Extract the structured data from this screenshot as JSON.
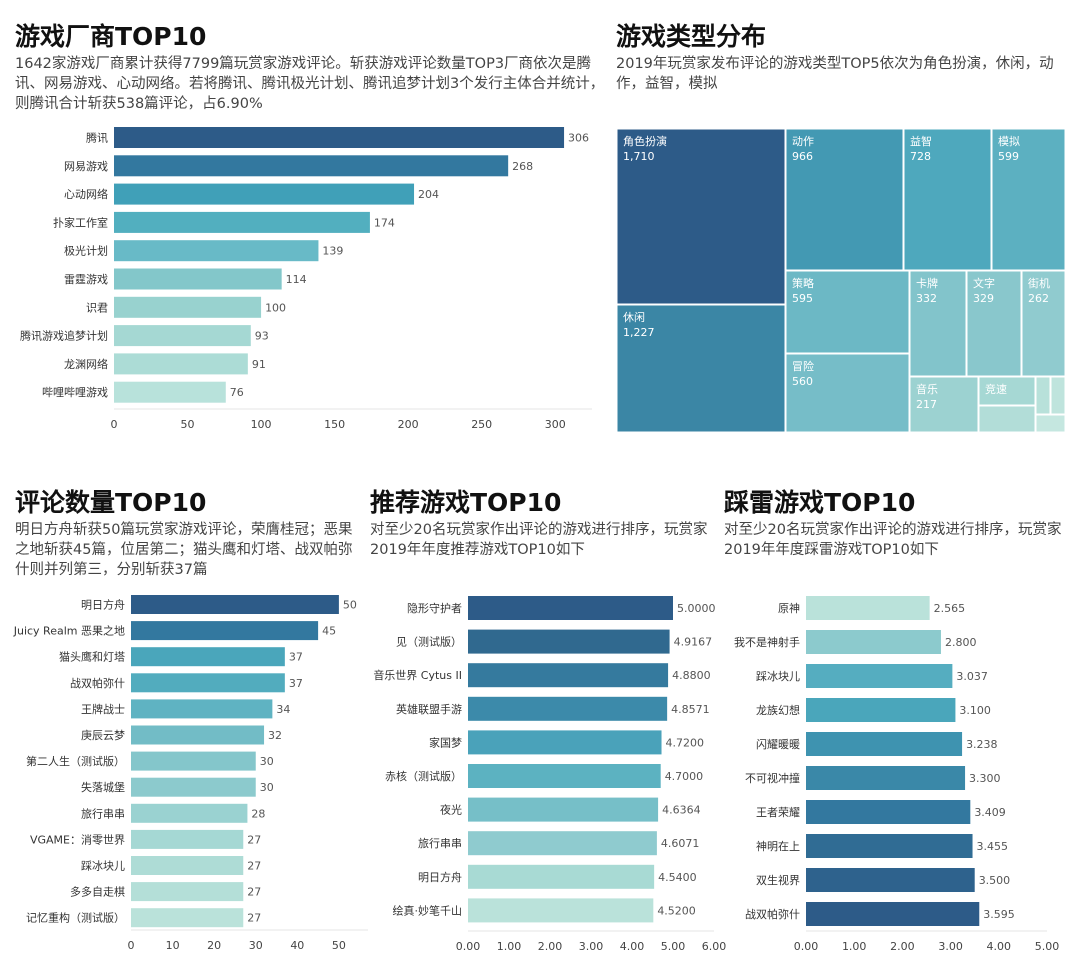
{
  "chart_data": [
    {
      "id": "vendors",
      "type": "bar",
      "orientation": "horizontal",
      "title": "游戏厂商TOP10",
      "subtitle": "1642家游戏厂商累计获得7799篇玩赏家游戏评论。斩获游戏评论数量TOP3厂商依次是腾讯、网易游戏、心动网络。若将腾讯、腾讯极光计划、腾讯追梦计划3个发行主体合并统计，则腾讯合计斩获538篇评论，占6.90%",
      "categories": [
        "腾讯",
        "网易游戏",
        "心动网络",
        "扑家工作室",
        "极光计划",
        "雷霆游戏",
        "识君",
        "腾讯游戏追梦计划",
        "龙渊网络",
        "哔哩哔哩游戏"
      ],
      "values": [
        306,
        268,
        204,
        174,
        139,
        114,
        100,
        93,
        91,
        76
      ],
      "value_labels": [
        "306",
        "268",
        "204",
        "174",
        "139",
        "114",
        "100",
        "93",
        "91",
        "76"
      ],
      "xlim": [
        0,
        325
      ],
      "xticks": [
        "0",
        "50",
        "100",
        "150",
        "200",
        "250",
        "300"
      ],
      "xtick_values": [
        0,
        50,
        100,
        150,
        200,
        250,
        300
      ],
      "colors": [
        "#2d5b88",
        "#33789f",
        "#40a0b8",
        "#52afbf",
        "#68bac7",
        "#83c7ca",
        "#98d2cf",
        "#a5d8d3",
        "#acdcd6",
        "#b8e2db"
      ]
    },
    {
      "id": "genres",
      "type": "treemap",
      "title": "游戏类型分布",
      "subtitle": "2019年玩赏家发布评论的游戏类型TOP5依次为角色扮演，休闲，动作，益智，模拟",
      "items": [
        {
          "name": "角色扮演",
          "value": 1710,
          "label": "1,710",
          "color": "#2d5b88"
        },
        {
          "name": "休闲",
          "value": 1227,
          "label": "1,227",
          "color": "#3b86a5"
        },
        {
          "name": "动作",
          "value": 966,
          "label": "966",
          "color": "#4399b3"
        },
        {
          "name": "益智",
          "value": 728,
          "label": "728",
          "color": "#4ea8bd"
        },
        {
          "name": "模拟",
          "value": 599,
          "label": "599",
          "color": "#5cb0c1"
        },
        {
          "name": "策略",
          "value": 595,
          "label": "595",
          "color": "#6cb8c5"
        },
        {
          "name": "冒险",
          "value": 560,
          "label": "560",
          "color": "#76bdc8"
        },
        {
          "name": "卡牌",
          "value": 332,
          "label": "332",
          "color": "#82c4cb"
        },
        {
          "name": "文字",
          "value": 329,
          "label": "329",
          "color": "#89c7cc"
        },
        {
          "name": "街机",
          "value": 262,
          "label": "262",
          "color": "#90cbcf"
        },
        {
          "name": "音乐",
          "value": 217,
          "label": "217",
          "color": "#9cd2d1"
        },
        {
          "name": "竞速",
          "value": 0,
          "label": "",
          "color": "#a6d8d4"
        }
      ]
    },
    {
      "id": "reviews",
      "type": "bar",
      "orientation": "horizontal",
      "title": "评论数量TOP10",
      "subtitle": "明日方舟斩获50篇玩赏家游戏评论，荣膺桂冠；恶果之地斩获45篇，位居第二；猫头鹰和灯塔、战双帕弥什则并列第三，分别斩获37篇",
      "categories": [
        "明日方舟",
        "Juicy Realm 恶果之地",
        "猫头鹰和灯塔",
        "战双帕弥什",
        "王牌战士",
        "庚辰云梦",
        "第二人生（测试版）",
        "失落城堡",
        "旅行串串",
        "VGAME：消零世界",
        "踩冰块儿",
        "多多自走棋",
        "记忆重构（测试版）"
      ],
      "values": [
        50,
        45,
        37,
        37,
        34,
        32,
        30,
        30,
        28,
        27,
        27,
        27,
        27
      ],
      "value_labels": [
        "50",
        "45",
        "37",
        "37",
        "34",
        "32",
        "30",
        "30",
        "28",
        "27",
        "27",
        "27",
        "27"
      ],
      "xlim": [
        0,
        57
      ],
      "xticks": [
        "0",
        "10",
        "20",
        "30",
        "40",
        "50"
      ],
      "xtick_values": [
        0,
        10,
        20,
        30,
        40,
        50
      ],
      "colors": [
        "#2d5b88",
        "#33789f",
        "#4aa6bb",
        "#52acbe",
        "#5fb3c2",
        "#72bcc6",
        "#84c6cb",
        "#8ccacd",
        "#9ad2d1",
        "#a5d8d4",
        "#aedcd6",
        "#b4dfd8",
        "#bae2da"
      ]
    },
    {
      "id": "recommend",
      "type": "bar",
      "orientation": "horizontal",
      "title": "推荐游戏TOP10",
      "subtitle": "对至少20名玩赏家作出评论的游戏进行排序，玩赏家2019年年度推荐游戏TOP10如下",
      "categories": [
        "隐形守护者",
        "见（测试版）",
        "音乐世界 Cytus II",
        "英雄联盟手游",
        "家国梦",
        "赤核（测试版）",
        "夜光",
        "旅行串串",
        "明日方舟",
        "绘真·妙笔千山"
      ],
      "values": [
        5.0,
        4.9167,
        4.88,
        4.8571,
        4.72,
        4.7,
        4.6364,
        4.6071,
        4.54,
        4.52
      ],
      "value_labels": [
        "5.0000",
        "4.9167",
        "4.8800",
        "4.8571",
        "4.7200",
        "4.7000",
        "4.6364",
        "4.6071",
        "4.5400",
        "4.5200"
      ],
      "xlim": [
        0,
        6
      ],
      "xticks": [
        "0.00",
        "1.00",
        "2.00",
        "3.00",
        "4.00",
        "5.00",
        "6.00"
      ],
      "xtick_values": [
        0,
        1,
        2,
        3,
        4,
        5,
        6
      ],
      "colors": [
        "#2d5b88",
        "#30698f",
        "#357a9e",
        "#3c8aaa",
        "#4aa2ba",
        "#5cb2c1",
        "#76bfc8",
        "#8fcbcf",
        "#a8dad4",
        "#bae2da"
      ]
    },
    {
      "id": "mines",
      "type": "bar",
      "orientation": "horizontal",
      "title": "踩雷游戏TOP10",
      "subtitle": "对至少20名玩赏家作出评论的游戏进行排序，玩赏家2019年年度踩雷游戏TOP10如下",
      "categories": [
        "原神",
        "我不是神射手",
        "踩冰块儿",
        "龙族幻想",
        "闪耀暖暖",
        "不可视冲撞",
        "王者荣耀",
        "神明在上",
        "双生视界",
        "战双帕弥什"
      ],
      "values": [
        2.565,
        2.8,
        3.037,
        3.1,
        3.238,
        3.3,
        3.409,
        3.455,
        3.5,
        3.595
      ],
      "value_labels": [
        "2.565",
        "2.800",
        "3.037",
        "3.100",
        "3.238",
        "3.300",
        "3.409",
        "3.455",
        "3.500",
        "3.595"
      ],
      "xlim": [
        0,
        5
      ],
      "xticks": [
        "0.00",
        "1.00",
        "2.00",
        "3.00",
        "4.00",
        "5.00"
      ],
      "xtick_values": [
        0,
        1,
        2,
        3,
        4,
        5
      ],
      "colors": [
        "#bae2da",
        "#8ccacd",
        "#55adc0",
        "#4aa6bb",
        "#3e93b0",
        "#3a88a8",
        "#33789f",
        "#306c94",
        "#2e628d",
        "#2d5b88"
      ]
    }
  ]
}
